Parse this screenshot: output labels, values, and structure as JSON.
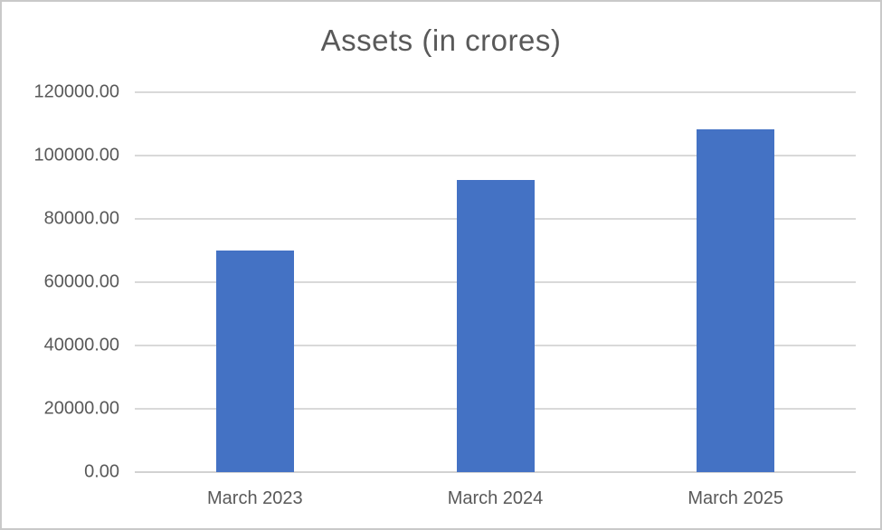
{
  "chart_data": {
    "type": "bar",
    "title": "Assets (in crores)",
    "categories": [
      "March 2023",
      "March 2024",
      "March 2025"
    ],
    "values": [
      70000,
      92400,
      108200
    ],
    "xlabel": "",
    "ylabel": "",
    "ylim": [
      0,
      120000
    ],
    "ytick_step": 20000,
    "ytick_decimals": 2,
    "ytick_labels": [
      "0.00",
      "20000.00",
      "40000.00",
      "60000.00",
      "80000.00",
      "100000.00",
      "120000.00"
    ],
    "grid": true,
    "legend_position": "none",
    "bar_color": "#4472C4",
    "gridline_color": "#D9D9D9",
    "axis_line_color": "#D2D2D2",
    "text_color": "#595959",
    "background_color": "#FFFFFF",
    "frame_border_color": "#C9C9C9"
  }
}
